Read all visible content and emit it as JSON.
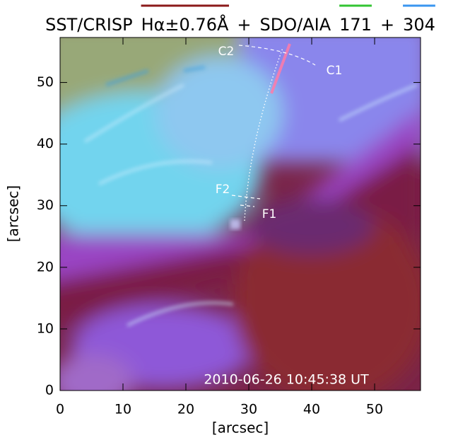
{
  "chart_data": {
    "type": "image",
    "title_parts": [
      {
        "text": "SST/CRISP"
      },
      {
        "text": "Hα±0.76Å",
        "color": "#8b1a1a"
      },
      {
        "text": "+"
      },
      {
        "text": "SDO/AIA"
      },
      {
        "text": "171",
        "color": "#33c433"
      },
      {
        "text": "+"
      },
      {
        "text": "304",
        "color": "#3a96f0"
      }
    ],
    "x_label": "[arcsec]",
    "y_label": "[arcsec]",
    "xlim": [
      0,
      57.3
    ],
    "ylim": [
      0,
      57.3
    ],
    "xticks": [
      0,
      10,
      20,
      30,
      40,
      50
    ],
    "yticks": [
      0,
      10,
      20,
      30,
      40,
      50
    ],
    "annotations": [
      "C2",
      "C1",
      "F2",
      "F1"
    ],
    "timestamp": "2010-06-26 10:45:38 UT"
  }
}
